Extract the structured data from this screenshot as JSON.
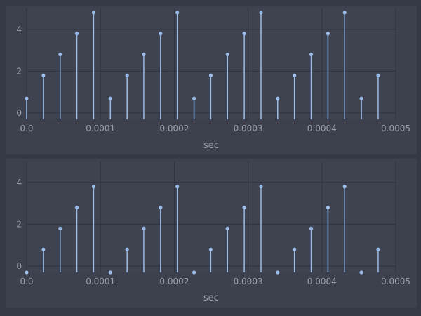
{
  "colors": {
    "background": "#353845",
    "panel": "#3d404d",
    "plot_area": "#3f4350",
    "grid": "#2f323d",
    "stem": "#9bbbe8",
    "text": "#9aa0ad"
  },
  "chart_data": [
    {
      "type": "stem",
      "xlabel": "sec",
      "xlim": [
        0,
        0.0005
      ],
      "ylim": [
        -0.3,
        5
      ],
      "xticks": [
        0,
        0.0001,
        0.0002,
        0.0003,
        0.0004,
        0.0005
      ],
      "xtick_labels": [
        "0.0",
        "0.0001",
        "0.0002",
        "0.0003",
        "0.0004",
        "0.0005"
      ],
      "yticks": [
        0,
        2,
        4
      ],
      "ytick_labels": [
        "0",
        "2",
        "4"
      ],
      "grid": true,
      "x": [
        0.0,
        2.27e-05,
        4.54e-05,
        6.8e-05,
        9.07e-05,
        0.0001134,
        0.0001361,
        0.0001587,
        0.0001814,
        0.0002041,
        0.0002268,
        0.0002494,
        0.0002721,
        0.0002948,
        0.0003175,
        0.0003401,
        0.0003628,
        0.0003855,
        0.0004082,
        0.0004308,
        0.0004535,
        0.0004762
      ],
      "values": [
        0.7,
        1.8,
        2.8,
        3.8,
        4.8,
        0.7,
        1.8,
        2.8,
        3.8,
        4.8,
        0.7,
        1.8,
        2.8,
        3.8,
        4.8,
        0.7,
        1.8,
        2.8,
        3.8,
        4.8,
        0.7,
        1.8
      ]
    },
    {
      "type": "stem",
      "xlabel": "sec",
      "xlim": [
        0,
        0.0005
      ],
      "ylim": [
        -0.3,
        5
      ],
      "xticks": [
        0,
        0.0001,
        0.0002,
        0.0003,
        0.0004,
        0.0005
      ],
      "xtick_labels": [
        "0.0",
        "0.0001",
        "0.0002",
        "0.0003",
        "0.0004",
        "0.0005"
      ],
      "yticks": [
        0,
        2,
        4
      ],
      "ytick_labels": [
        "0",
        "2",
        "4"
      ],
      "grid": true,
      "x": [
        0.0,
        2.27e-05,
        4.54e-05,
        6.8e-05,
        9.07e-05,
        0.0001134,
        0.0001361,
        0.0001587,
        0.0001814,
        0.0002041,
        0.0002268,
        0.0002494,
        0.0002721,
        0.0002948,
        0.0003175,
        0.0003401,
        0.0003628,
        0.0003855,
        0.0004082,
        0.0004308,
        0.0004535,
        0.0004762
      ],
      "values": [
        -0.3,
        0.8,
        1.8,
        2.8,
        3.8,
        -0.3,
        0.8,
        1.8,
        2.8,
        3.8,
        -0.3,
        0.8,
        1.8,
        2.8,
        3.8,
        -0.3,
        0.8,
        1.8,
        2.8,
        3.8,
        -0.3,
        0.8
      ]
    }
  ]
}
